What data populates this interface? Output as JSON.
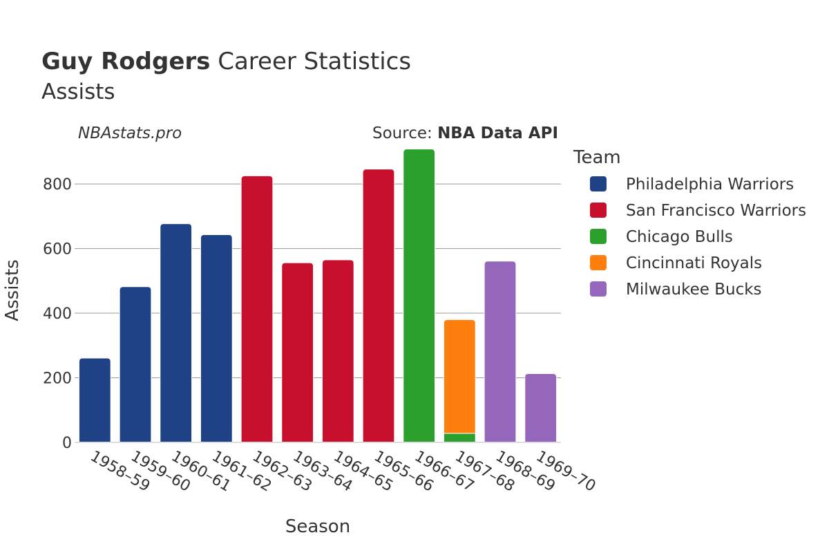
{
  "header": {
    "player_name": "Guy Rodgers",
    "title_rest": " Career Statistics",
    "subtitle": "Assists",
    "watermark": "NBAstats.pro",
    "source_prefix": "Source: ",
    "source_name": "NBA Data API"
  },
  "legend": {
    "title": "Team",
    "items": [
      {
        "label": "Philadelphia Warriors",
        "color": "#1f4287"
      },
      {
        "label": "San Francisco Warriors",
        "color": "#c8102e"
      },
      {
        "label": "Chicago Bulls",
        "color": "#2ca02c"
      },
      {
        "label": "Cincinnati Royals",
        "color": "#ff7f0e"
      },
      {
        "label": "Milwaukee Bucks",
        "color": "#9467bd"
      }
    ]
  },
  "chart_data": {
    "type": "bar",
    "stacked": true,
    "xlabel": "Season",
    "ylabel": "Assists",
    "ylim": [
      0,
      920
    ],
    "yticks": [
      0,
      200,
      400,
      600,
      800
    ],
    "grid": true,
    "legend_position": "right",
    "categories": [
      "1958–59",
      "1959–60",
      "1960–61",
      "1961–62",
      "1962–63",
      "1963–64",
      "1964–65",
      "1965–66",
      "1966–67",
      "1967–68",
      "1968–69",
      "1969–70"
    ],
    "series": [
      {
        "name": "Philadelphia Warriors",
        "color": "#1f4287",
        "values": [
          261,
          482,
          677,
          643,
          0,
          0,
          0,
          0,
          0,
          0,
          0,
          0
        ]
      },
      {
        "name": "San Francisco Warriors",
        "color": "#c8102e",
        "values": [
          0,
          0,
          0,
          0,
          825,
          556,
          565,
          846,
          0,
          0,
          0,
          0
        ]
      },
      {
        "name": "Chicago Bulls",
        "color": "#2ca02c",
        "values": [
          0,
          0,
          0,
          0,
          0,
          0,
          0,
          0,
          908,
          28,
          0,
          0
        ]
      },
      {
        "name": "Cincinnati Royals",
        "color": "#ff7f0e",
        "values": [
          0,
          0,
          0,
          0,
          0,
          0,
          0,
          0,
          0,
          352,
          0,
          0
        ]
      },
      {
        "name": "Milwaukee Bucks",
        "color": "#9467bd",
        "values": [
          0,
          0,
          0,
          0,
          0,
          0,
          0,
          0,
          0,
          0,
          561,
          213
        ]
      }
    ]
  }
}
